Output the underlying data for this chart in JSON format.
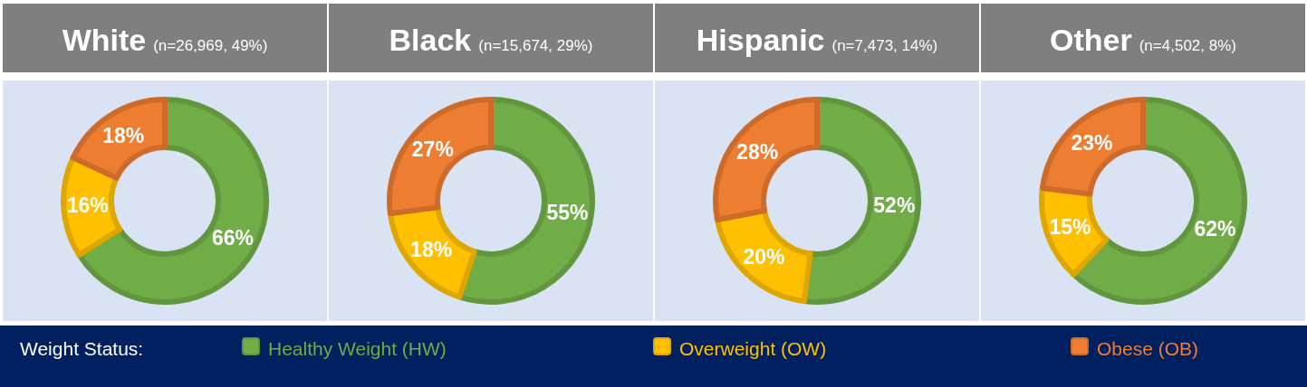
{
  "chart_data": [
    {
      "type": "donut",
      "title": "White",
      "subtitle": "(n=26,969, 49%)",
      "categories": [
        "Healthy Weight (HW)",
        "Overweight (OW)",
        "Obese (OB)"
      ],
      "values": [
        66,
        16,
        18
      ],
      "value_labels": [
        "66%",
        "16%",
        "18%"
      ],
      "colors": [
        "#70ad47",
        "#ffc000",
        "#ed7d31"
      ],
      "legend": "bottom",
      "legend_title": "Weight Status:"
    },
    {
      "type": "donut",
      "title": "Black",
      "subtitle": "(n=15,674, 29%)",
      "categories": [
        null,
        null,
        null
      ],
      "values": [
        55,
        18,
        27
      ],
      "value_labels": [
        "55%",
        "18%",
        "27%"
      ],
      "colors": [
        "#70ad47",
        "#ffc000",
        "#ed7d31"
      ]
    },
    {
      "type": "donut",
      "title": "Hispanic",
      "subtitle": "(n=7,473, 14%)",
      "categories": [
        null,
        null,
        null
      ],
      "values": [
        52,
        20,
        28
      ],
      "value_labels": [
        "52%",
        "20%",
        "28%"
      ],
      "colors": [
        "#70ad47",
        "#ffc000",
        "#ed7d31"
      ]
    },
    {
      "type": "donut",
      "title": "Other",
      "subtitle": "(n=4,502, 8%)",
      "categories": [
        null,
        null,
        null
      ],
      "values": [
        62,
        15,
        23
      ],
      "value_labels": [
        "62%",
        "15%",
        "23%"
      ],
      "colors": [
        "#70ad47",
        "#ffc000",
        "#ed7d31"
      ]
    }
  ]
}
